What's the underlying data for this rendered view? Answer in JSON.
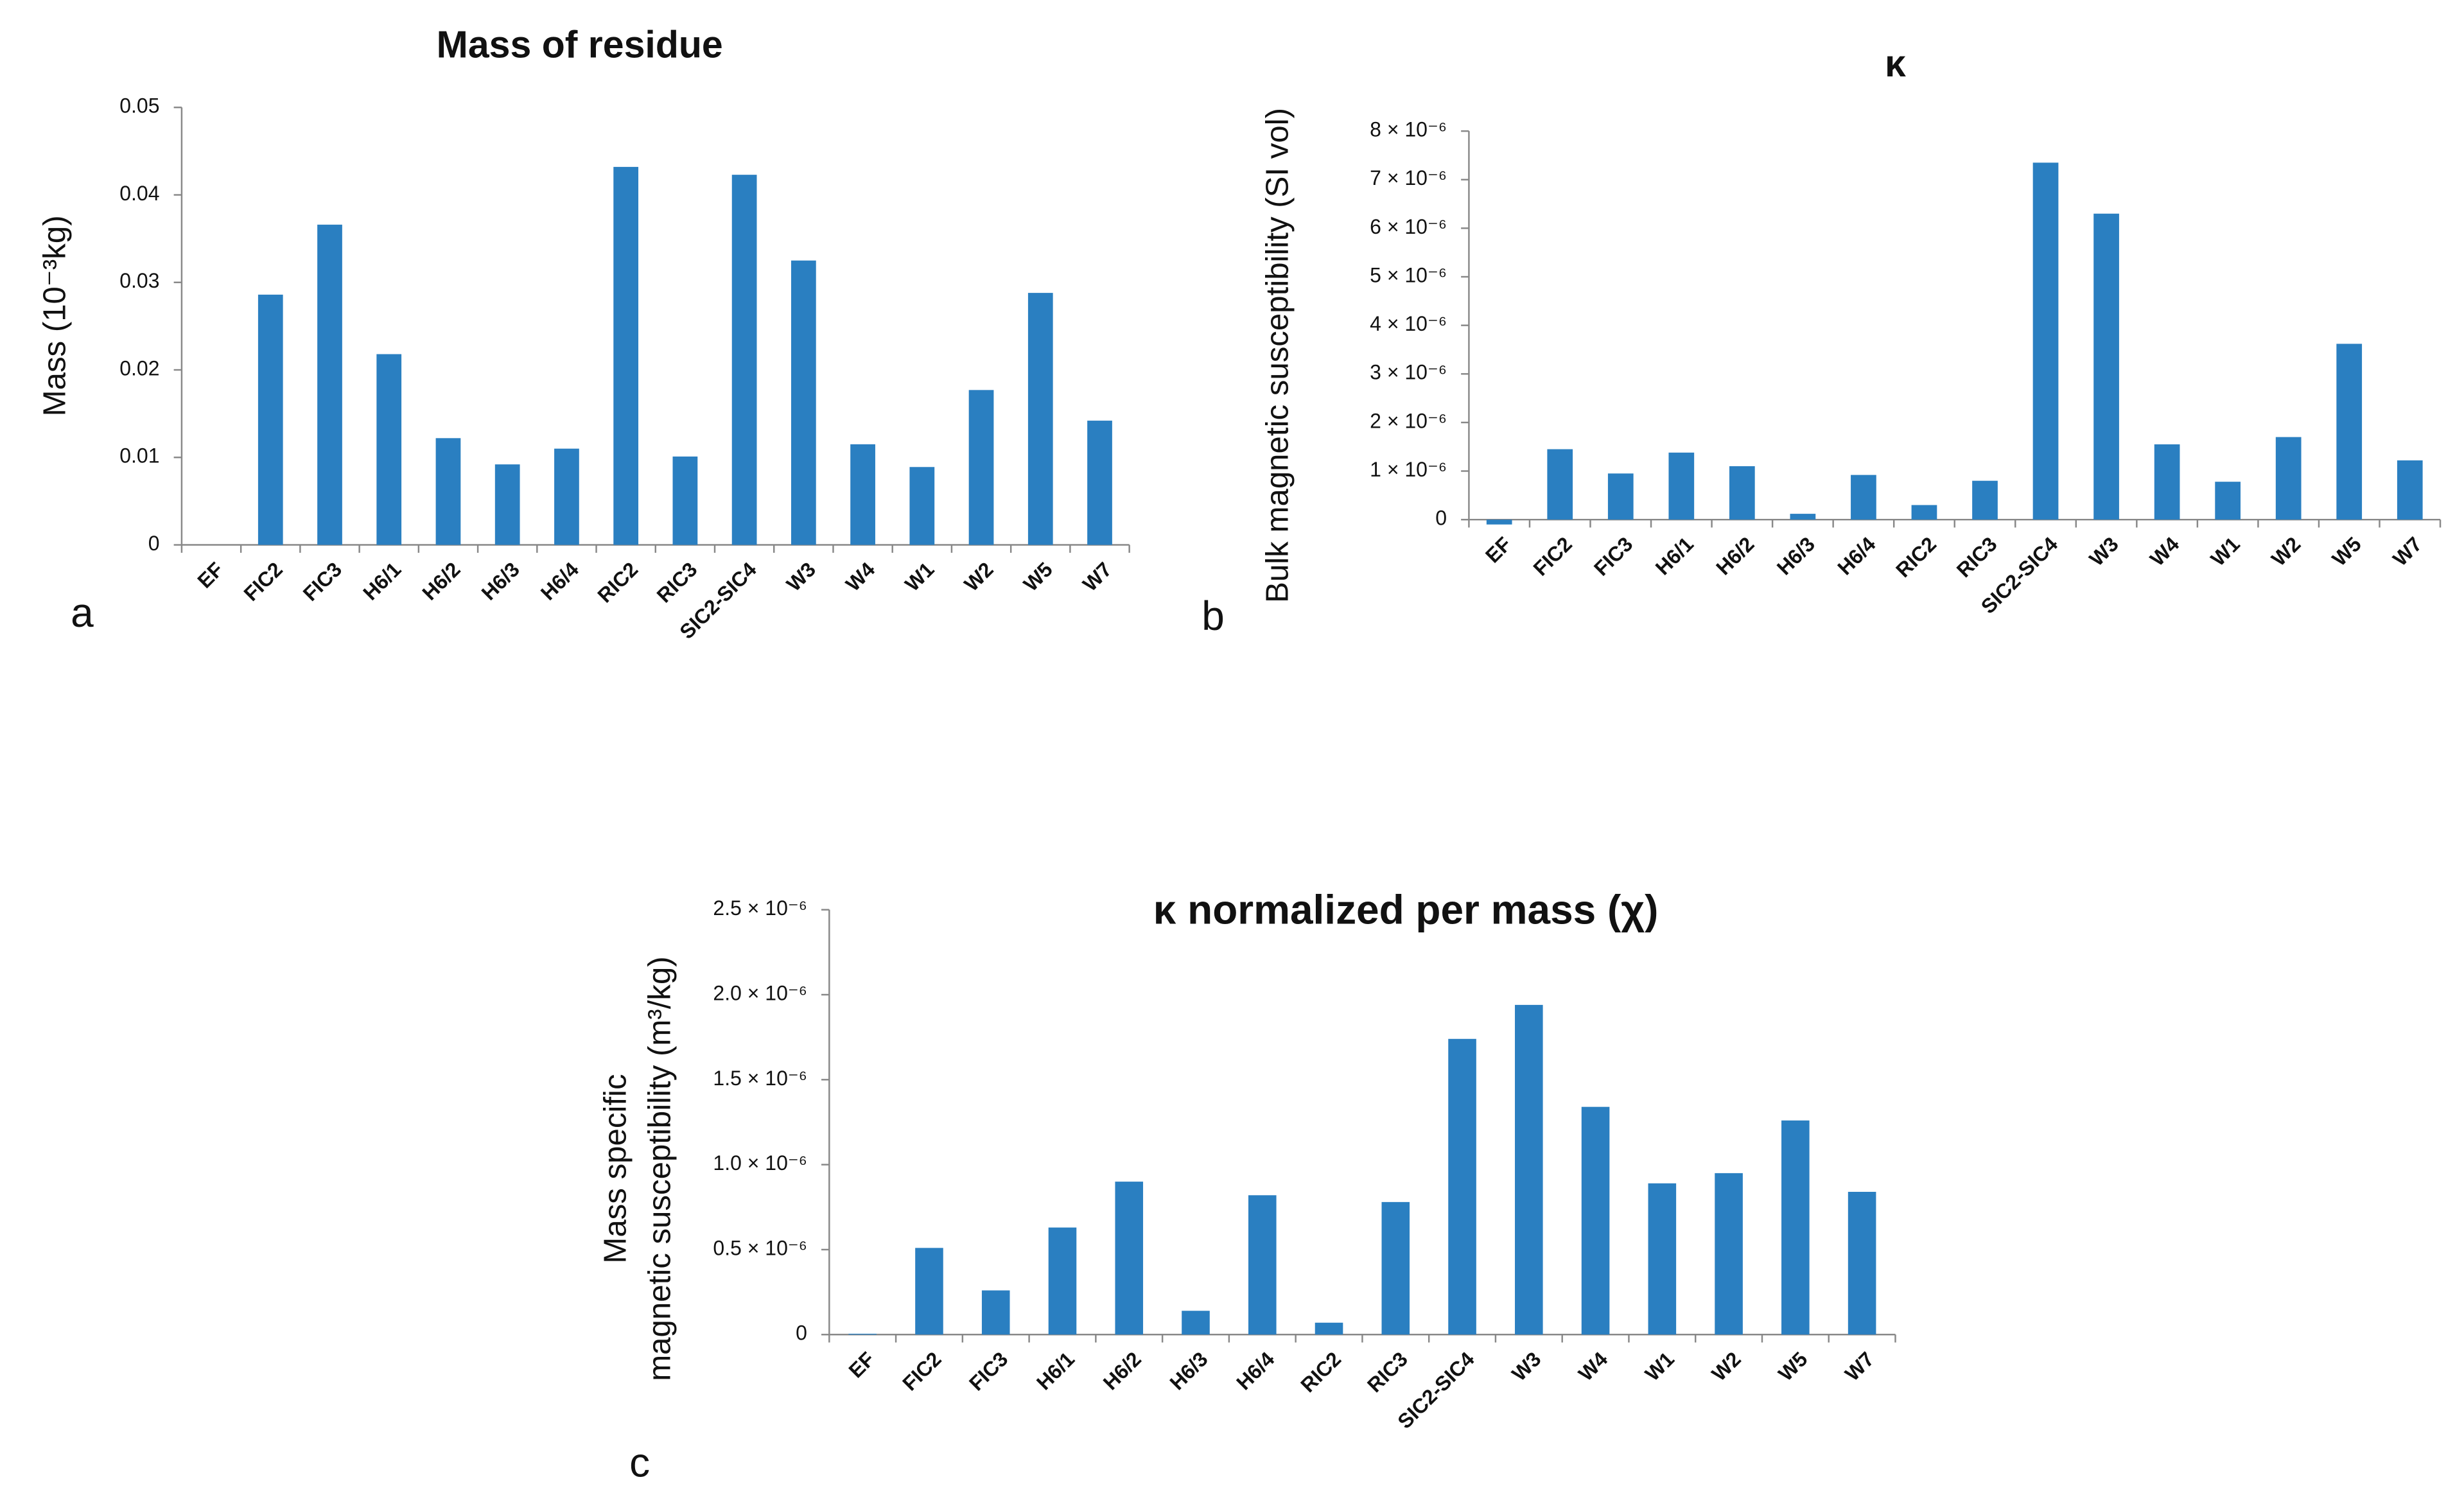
{
  "chart_data": [
    {
      "type": "bar",
      "title": "Mass of residue",
      "panel_label": "a",
      "y_label": [
        "Mass (10⁻³kg)"
      ],
      "categories": [
        "EF",
        "FIC2",
        "FIC3",
        "H6/1",
        "H6/2",
        "H6/3",
        "H6/4",
        "RIC2",
        "RIC3",
        "SIC2-SIC4",
        "W3",
        "W4",
        "W1",
        "W2",
        "W5",
        "W7"
      ],
      "values": [
        0,
        0.0286,
        0.0366,
        0.0218,
        0.0122,
        0.0092,
        0.011,
        0.0432,
        0.0101,
        0.0423,
        0.0325,
        0.0115,
        0.0089,
        0.0177,
        0.0288,
        0.0142
      ],
      "color": "#2a7fc1",
      "ylim": [
        0,
        0.05
      ],
      "yticks": [
        0,
        0.01,
        0.02,
        0.03,
        0.04,
        0.05
      ]
    },
    {
      "type": "bar",
      "title": "κ",
      "panel_label": "b",
      "y_label": [
        "Bulk magnetic susceptibility (SI vol)"
      ],
      "categories": [
        "EF",
        "FIC2",
        "FIC3",
        "H6/1",
        "H6/2",
        "H6/3",
        "H6/4",
        "RIC2",
        "RIC3",
        "SIC2-SIC4",
        "W3",
        "W4",
        "W1",
        "W2",
        "W5",
        "W7"
      ],
      "values": [
        -1e-07,
        1.45e-06,
        9.5e-07,
        1.38e-06,
        1.1e-06,
        1.2e-07,
        9.2e-07,
        3e-07,
        8e-07,
        7.35e-06,
        6.3e-06,
        1.55e-06,
        7.8e-07,
        1.7e-06,
        3.62e-06,
        1.22e-06
      ],
      "color": "#2a7fc1",
      "ylim": [
        0,
        8e-06
      ],
      "yticks": [
        0,
        {
          "value": 1e-06,
          "label": "1 × 10⁻⁶"
        },
        {
          "value": 2e-06,
          "label": "2 × 10⁻⁶"
        },
        {
          "value": 3e-06,
          "label": "3 × 10⁻⁶"
        },
        {
          "value": 4e-06,
          "label": "4 × 10⁻⁶"
        },
        {
          "value": 5e-06,
          "label": "5 × 10⁻⁶"
        },
        {
          "value": 6e-06,
          "label": "6 × 10⁻⁶"
        },
        {
          "value": 7e-06,
          "label": "7 × 10⁻⁶"
        },
        {
          "value": 8e-06,
          "label": "8 × 10⁻⁶"
        }
      ]
    },
    {
      "type": "bar",
      "title": "κ normalized per mass (χ)",
      "panel_label": "c",
      "y_label": [
        "Mass specific",
        "magnetic susceptibility (m³/kg)"
      ],
      "categories": [
        "EF",
        "FIC2",
        "FIC3",
        "H6/1",
        "H6/2",
        "H6/3",
        "H6/4",
        "RIC2",
        "RIC3",
        "SIC2-SIC4",
        "W3",
        "W4",
        "W1",
        "W2",
        "W5",
        "W7"
      ],
      "values": [
        5e-09,
        5.1e-07,
        2.6e-07,
        6.3e-07,
        9e-07,
        1.4e-07,
        8.2e-07,
        7e-08,
        7.8e-07,
        1.74e-06,
        1.94e-06,
        1.34e-06,
        8.9e-07,
        9.5e-07,
        1.26e-06,
        8.4e-07
      ],
      "color": "#2a7fc1",
      "ylim": [
        0,
        2.5e-06
      ],
      "yticks": [
        0,
        {
          "value": 5e-07,
          "label": "0.5 × 10⁻⁶"
        },
        {
          "value": 1e-06,
          "label": "1.0 × 10⁻⁶"
        },
        {
          "value": 1.5e-06,
          "label": "1.5 × 10⁻⁶"
        },
        {
          "value": 2e-06,
          "label": "2.0 × 10⁻⁶"
        },
        {
          "value": 2.5e-06,
          "label": "2.5 × 10⁻⁶"
        }
      ]
    }
  ]
}
